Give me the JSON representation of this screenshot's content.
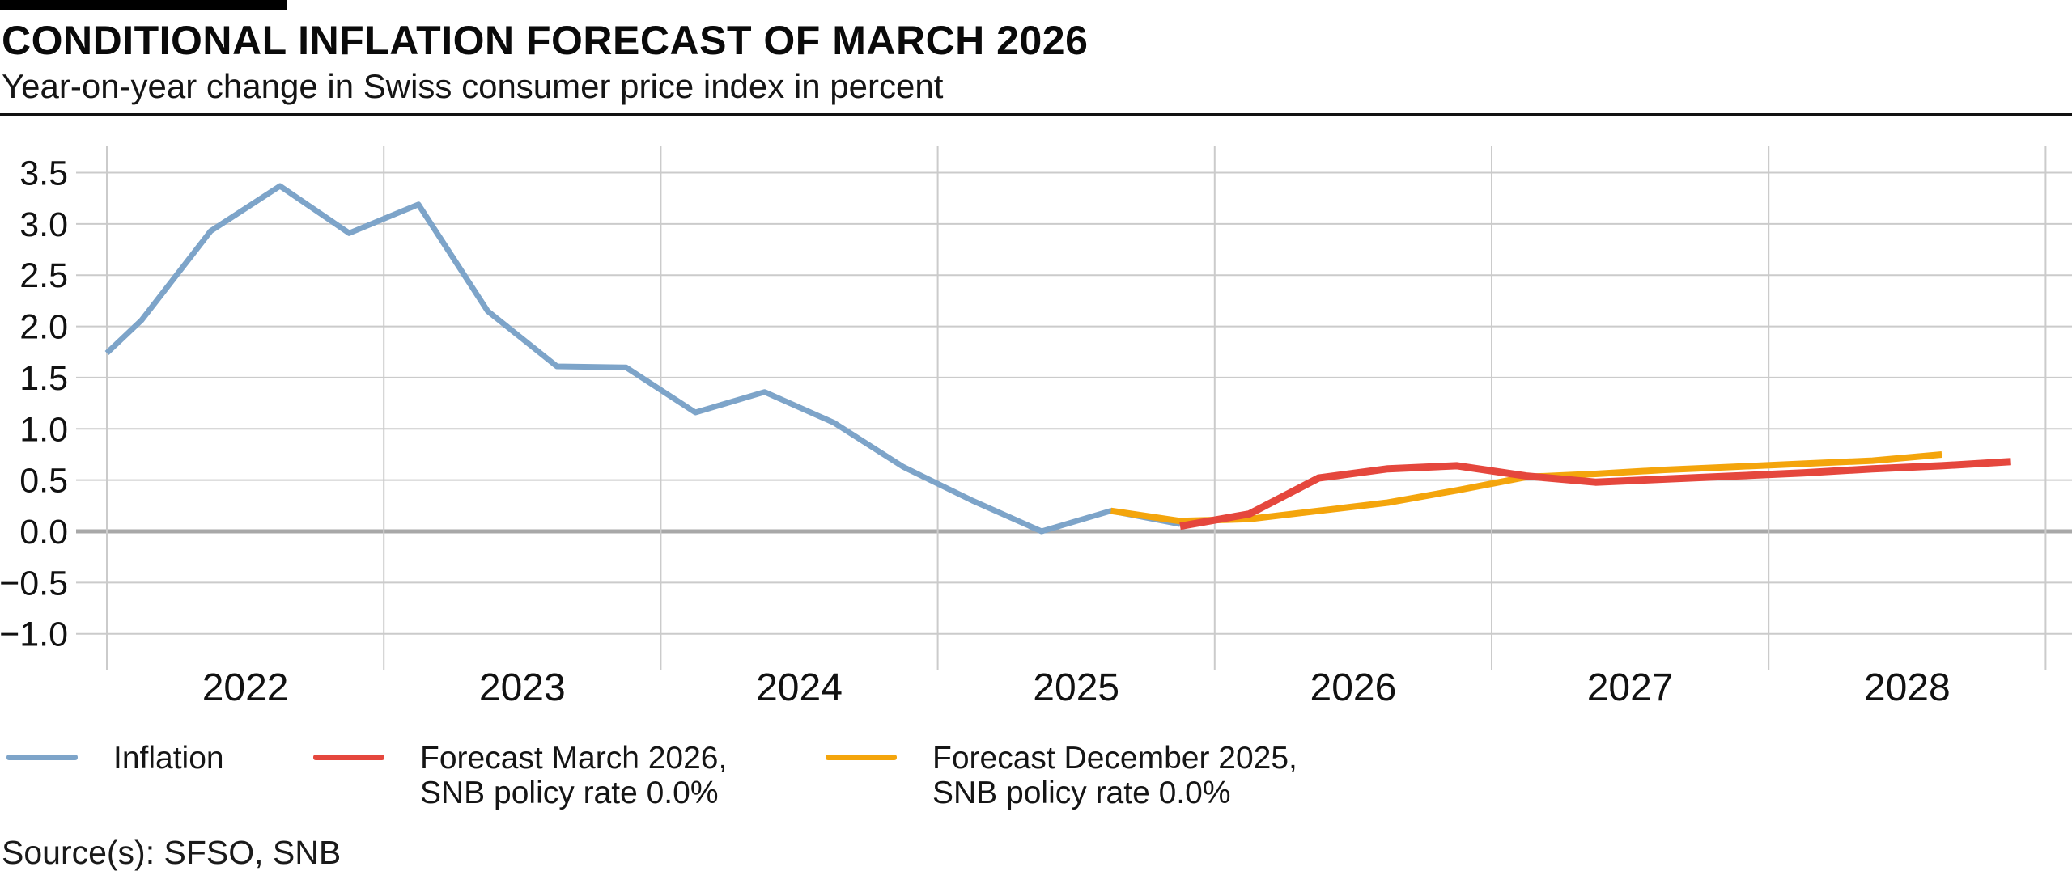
{
  "header": {
    "title": "CONDITIONAL INFLATION FORECAST OF MARCH 2026",
    "subtitle": "Year-on-year change in Swiss consumer price index in percent"
  },
  "footer": {
    "source": "Source(s): SFSO, SNB"
  },
  "colors": {
    "inflation": "#7DA4C9",
    "forecast_march": "#E5473D",
    "forecast_december": "#F4A50C",
    "grid": "#CBCBCB",
    "zero_line": "#A8A8A8",
    "axis_text": "#111111",
    "title_bar": "#000000"
  },
  "legend": [
    {
      "id": "inflation",
      "color": "#7DA4C9",
      "lines": [
        "Inflation"
      ]
    },
    {
      "id": "forecast-march-2026",
      "color": "#E5473D",
      "lines": [
        "Forecast March 2026,",
        "SNB policy rate 0.0%"
      ]
    },
    {
      "id": "forecast-december-2025",
      "color": "#F4A50C",
      "lines": [
        "Forecast December 2025,",
        "SNB policy rate 0.0%"
      ]
    }
  ],
  "chart_data": {
    "type": "line",
    "title": "CONDITIONAL INFLATION FORECAST OF MARCH 2026",
    "subtitle": "Year-on-year change in Swiss consumer price index in percent",
    "xlabel": "",
    "ylabel": "Year-on-year change in Swiss consumer price index in percent",
    "x_unit": "decimal year, quarterly points at quarter midpoints",
    "x_range": [
      2022,
      2029
    ],
    "ylim": [
      -1.0,
      3.5
    ],
    "grid": true,
    "zero_line": true,
    "legend_position": "bottom",
    "y_ticks": [
      {
        "label": "3.5",
        "value": 3.5
      },
      {
        "label": "3.0",
        "value": 3.0
      },
      {
        "label": "2.5",
        "value": 2.5
      },
      {
        "label": "2.0",
        "value": 2.0
      },
      {
        "label": "1.5",
        "value": 1.5
      },
      {
        "label": "1.0",
        "value": 1.0
      },
      {
        "label": "0.5",
        "value": 0.5
      },
      {
        "label": "0.0",
        "value": 0.0
      },
      {
        "label": "−0.5",
        "value": -0.5
      },
      {
        "label": "−1.0",
        "value": -1.0
      }
    ],
    "x_ticks": [
      {
        "label": "2022",
        "value": 2022
      },
      {
        "label": "2023",
        "value": 2023
      },
      {
        "label": "2024",
        "value": 2024
      },
      {
        "label": "2025",
        "value": 2025
      },
      {
        "label": "2026",
        "value": 2026
      },
      {
        "label": "2027",
        "value": 2027
      },
      {
        "label": "2028",
        "value": 2028
      }
    ],
    "series": [
      {
        "name": "Inflation",
        "color": "#7DA4C9",
        "stroke_width": 7,
        "points": [
          [
            2022.0,
            1.74
          ],
          [
            2022.125,
            2.06
          ],
          [
            2022.375,
            2.93
          ],
          [
            2022.625,
            3.37
          ],
          [
            2022.875,
            2.91
          ],
          [
            2023.125,
            3.19
          ],
          [
            2023.375,
            2.15
          ],
          [
            2023.625,
            1.61
          ],
          [
            2023.875,
            1.6
          ],
          [
            2024.125,
            1.16
          ],
          [
            2024.375,
            1.36
          ],
          [
            2024.625,
            1.06
          ],
          [
            2024.875,
            0.63
          ],
          [
            2025.125,
            0.3
          ],
          [
            2025.375,
            0.0
          ],
          [
            2025.625,
            0.2
          ],
          [
            2025.875,
            0.07
          ]
        ]
      },
      {
        "name": "Forecast December 2025, SNB policy rate 0.0%",
        "color": "#F4A50C",
        "stroke_width": 8,
        "points": [
          [
            2025.625,
            0.2
          ],
          [
            2025.875,
            0.1
          ],
          [
            2026.125,
            0.12
          ],
          [
            2026.375,
            0.2
          ],
          [
            2026.625,
            0.28
          ],
          [
            2026.875,
            0.4
          ],
          [
            2027.125,
            0.53
          ],
          [
            2027.375,
            0.56
          ],
          [
            2027.625,
            0.6
          ],
          [
            2027.875,
            0.63
          ],
          [
            2028.125,
            0.66
          ],
          [
            2028.375,
            0.69
          ],
          [
            2028.625,
            0.75
          ]
        ]
      },
      {
        "name": "Forecast March 2026, SNB policy rate 0.0%",
        "color": "#E5473D",
        "stroke_width": 9,
        "points": [
          [
            2025.875,
            0.05
          ],
          [
            2026.125,
            0.17
          ],
          [
            2026.375,
            0.52
          ],
          [
            2026.625,
            0.61
          ],
          [
            2026.875,
            0.64
          ],
          [
            2027.125,
            0.54
          ],
          [
            2027.375,
            0.48
          ],
          [
            2027.625,
            0.51
          ],
          [
            2027.875,
            0.54
          ],
          [
            2028.125,
            0.57
          ],
          [
            2028.375,
            0.61
          ],
          [
            2028.625,
            0.64
          ],
          [
            2028.875,
            0.68
          ]
        ]
      }
    ]
  }
}
